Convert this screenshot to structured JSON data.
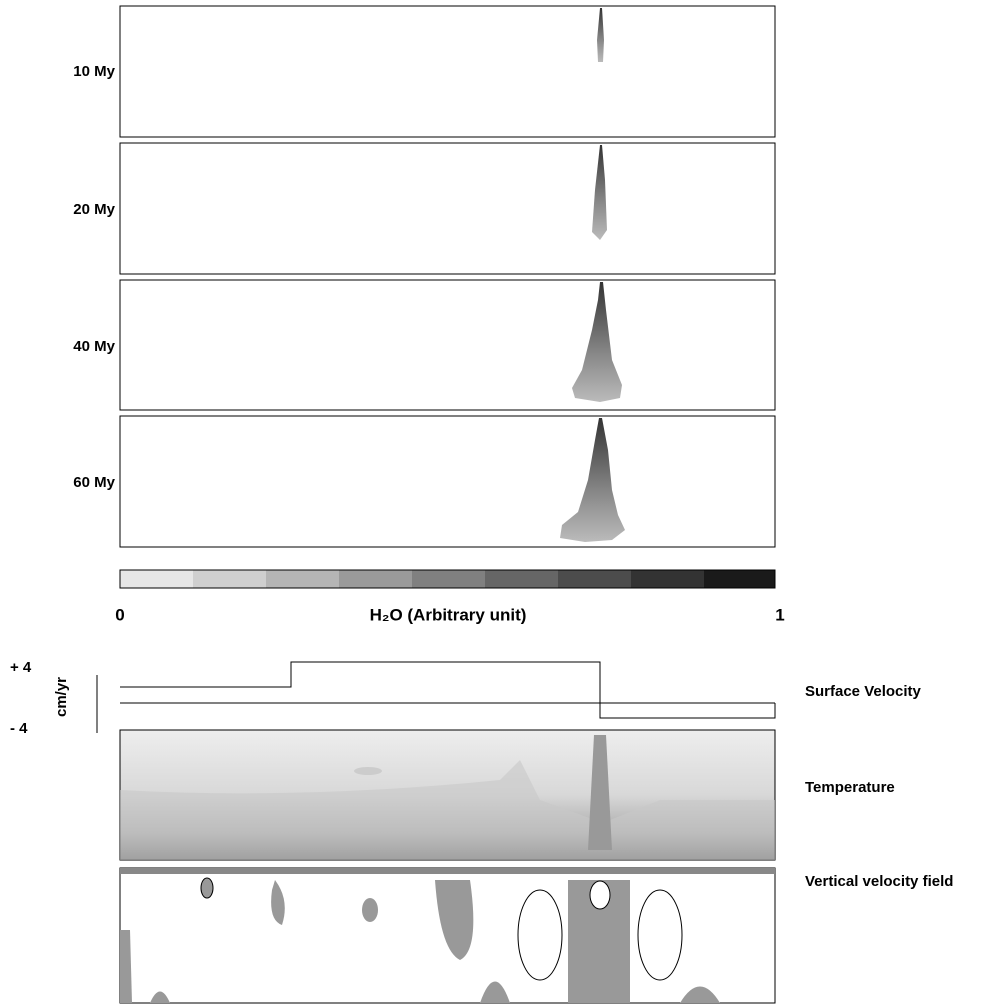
{
  "panels": [
    {
      "label": "10 My"
    },
    {
      "label": "20 My"
    },
    {
      "label": "40 My"
    },
    {
      "label": "60 My"
    }
  ],
  "colorbar": {
    "min_label": "0",
    "max_label": "1",
    "title": "H₂O (Arbitrary unit)"
  },
  "velocity_axis": {
    "top_label": "+ 4",
    "bottom_label": "- 4",
    "unit": "cm/yr"
  },
  "rows": {
    "surface_velocity": "Surface Velocity",
    "temperature": "Temperature",
    "vertical_velocity": "Vertical velocity field"
  }
}
